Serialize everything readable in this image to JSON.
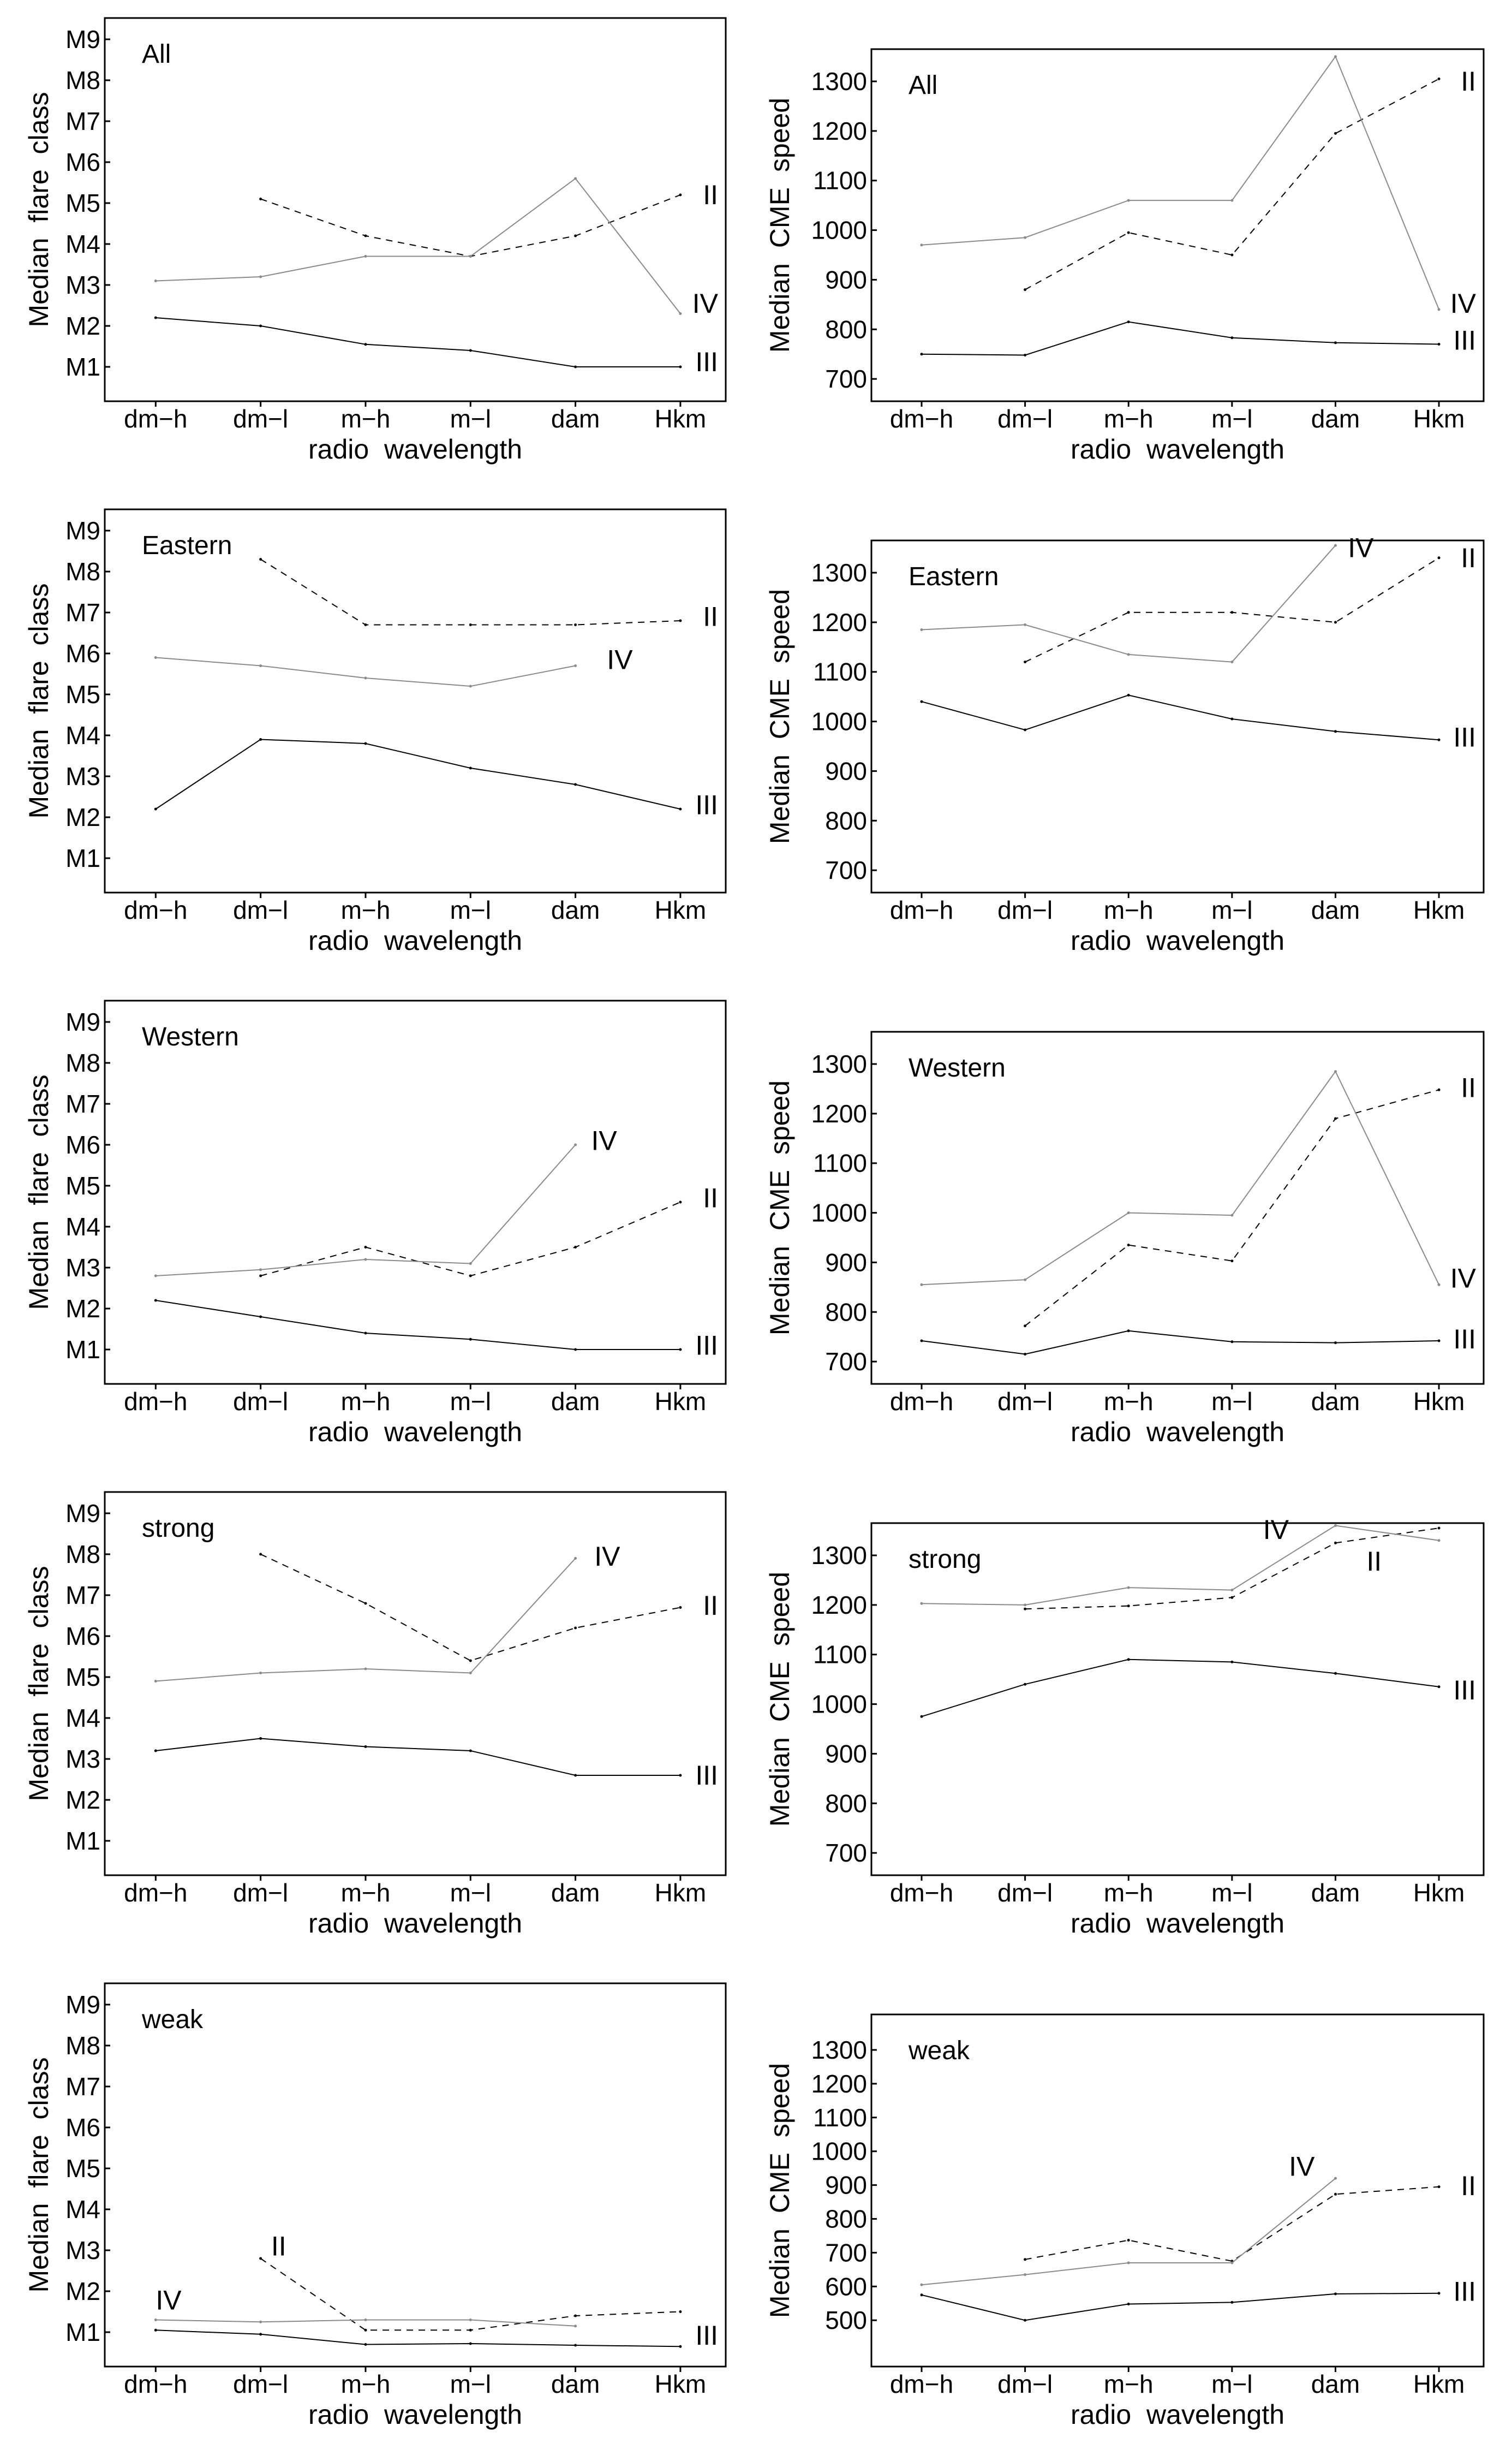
{
  "figure": {
    "rows": [
      "All",
      "Eastern",
      "Western",
      "strong",
      "weak"
    ],
    "columns": [
      "Median flare class",
      "Median CME speed"
    ],
    "accent_gray": "#8a8a8a",
    "line_black": "#000000"
  },
  "chart_data": [
    {
      "type": "line",
      "title": "All",
      "xlabel": "radio wavelength",
      "ylabel": "Median flare class",
      "col": "flare",
      "grid": false,
      "legend_position": "inline-right",
      "categories": [
        "dm−h",
        "dm−l",
        "m−h",
        "m−l",
        "dam",
        "Hkm"
      ],
      "ytick_values": [
        1,
        2,
        3,
        4,
        5,
        6,
        7,
        8,
        9
      ],
      "ytick_labels": [
        "M1",
        "M2",
        "M3",
        "M4",
        "M5",
        "M6",
        "M7",
        "M8",
        "M9"
      ],
      "ylim": [
        0.16,
        9.52
      ],
      "series": [
        {
          "name": "II",
          "line": "dashed",
          "color": "#000000",
          "values": [
            null,
            5.1,
            4.2,
            3.7,
            4.2,
            5.2
          ],
          "label": {
            "edge": "right",
            "y": 5.2
          }
        },
        {
          "name": "IV",
          "line": "solid",
          "color": "#8a8a8a",
          "values": [
            3.1,
            3.2,
            3.7,
            3.7,
            5.6,
            2.3
          ],
          "label": {
            "edge": "right",
            "y": 2.55
          }
        },
        {
          "name": "III",
          "line": "solid",
          "color": "#000000",
          "values": [
            2.2,
            2.0,
            1.55,
            1.4,
            1.0,
            1.0
          ],
          "label": {
            "edge": "right",
            "y": 1.12
          }
        }
      ]
    },
    {
      "type": "line",
      "title": "All",
      "xlabel": "radio wavelength",
      "ylabel": "Median CME speed",
      "col": "cme",
      "grid": false,
      "legend_position": "inline-right",
      "categories": [
        "dm−h",
        "dm−l",
        "m−h",
        "m−l",
        "dam",
        "Hkm"
      ],
      "ytick_values": [
        700,
        800,
        900,
        1000,
        1100,
        1200,
        1300
      ],
      "ytick_labels": [
        "700",
        "800",
        "900",
        "1000",
        "1100",
        "1200",
        "1300"
      ],
      "ylim": [
        655,
        1365
      ],
      "series": [
        {
          "name": "II",
          "line": "dashed",
          "color": "#000000",
          "values": [
            null,
            880,
            995,
            950,
            1195,
            1305
          ],
          "label": {
            "edge": "right",
            "y": 1300
          }
        },
        {
          "name": "IV",
          "line": "solid",
          "color": "#8a8a8a",
          "values": [
            970,
            985,
            1060,
            1060,
            1350,
            840
          ],
          "label": {
            "edge": "right",
            "y": 852
          }
        },
        {
          "name": "III",
          "line": "solid",
          "color": "#000000",
          "values": [
            750,
            748,
            815,
            783,
            773,
            770
          ],
          "label": {
            "edge": "right",
            "y": 778
          }
        }
      ]
    },
    {
      "type": "line",
      "title": "Eastern",
      "xlabel": "radio wavelength",
      "ylabel": "Median flare class",
      "col": "flare",
      "grid": false,
      "legend_position": "inline-right",
      "categories": [
        "dm−h",
        "dm−l",
        "m−h",
        "m−l",
        "dam",
        "Hkm"
      ],
      "ytick_values": [
        1,
        2,
        3,
        4,
        5,
        6,
        7,
        8,
        9
      ],
      "ytick_labels": [
        "M1",
        "M2",
        "M3",
        "M4",
        "M5",
        "M6",
        "M7",
        "M8",
        "M9"
      ],
      "ylim": [
        0.16,
        9.52
      ],
      "series": [
        {
          "name": "II",
          "line": "dashed",
          "color": "#000000",
          "values": [
            null,
            8.3,
            6.7,
            6.7,
            6.7,
            6.8
          ],
          "label": {
            "edge": "right",
            "y": 6.9
          }
        },
        {
          "name": "IV",
          "line": "solid",
          "color": "#8a8a8a",
          "values": [
            5.9,
            5.7,
            5.4,
            5.2,
            5.7,
            null
          ],
          "label": {
            "x": 4.3,
            "y": 5.85
          }
        },
        {
          "name": "III",
          "line": "solid",
          "color": "#000000",
          "values": [
            2.2,
            3.9,
            3.8,
            3.2,
            2.8,
            2.2
          ],
          "label": {
            "edge": "right",
            "y": 2.3
          }
        }
      ]
    },
    {
      "type": "line",
      "title": "Eastern",
      "xlabel": "radio wavelength",
      "ylabel": "Median CME speed",
      "col": "cme",
      "grid": false,
      "legend_position": "inline-right",
      "categories": [
        "dm−h",
        "dm−l",
        "m−h",
        "m−l",
        "dam",
        "Hkm"
      ],
      "ytick_values": [
        700,
        800,
        900,
        1000,
        1100,
        1200,
        1300
      ],
      "ytick_labels": [
        "700",
        "800",
        "900",
        "1000",
        "1100",
        "1200",
        "1300"
      ],
      "ylim": [
        655,
        1365
      ],
      "series": [
        {
          "name": "II",
          "line": "dashed",
          "color": "#000000",
          "values": [
            null,
            1120,
            1220,
            1220,
            1200,
            1330
          ],
          "label": {
            "edge": "right",
            "y": 1330
          }
        },
        {
          "name": "IV",
          "line": "solid",
          "color": "#8a8a8a",
          "values": [
            1185,
            1195,
            1135,
            1120,
            1355,
            null
          ],
          "label": {
            "x": 4.12,
            "y": 1350
          }
        },
        {
          "name": "III",
          "line": "solid",
          "color": "#000000",
          "values": [
            1040,
            983,
            1053,
            1005,
            980,
            963
          ],
          "label": {
            "edge": "right",
            "y": 968
          }
        }
      ]
    },
    {
      "type": "line",
      "title": "Western",
      "xlabel": "radio wavelength",
      "ylabel": "Median flare class",
      "col": "flare",
      "grid": false,
      "legend_position": "inline-right",
      "categories": [
        "dm−h",
        "dm−l",
        "m−h",
        "m−l",
        "dam",
        "Hkm"
      ],
      "ytick_values": [
        1,
        2,
        3,
        4,
        5,
        6,
        7,
        8,
        9
      ],
      "ytick_labels": [
        "M1",
        "M2",
        "M3",
        "M4",
        "M5",
        "M6",
        "M7",
        "M8",
        "M9"
      ],
      "ylim": [
        0.16,
        9.52
      ],
      "series": [
        {
          "name": "II",
          "line": "dashed",
          "color": "#000000",
          "values": [
            null,
            2.8,
            3.5,
            2.8,
            3.5,
            4.6
          ],
          "label": {
            "edge": "right",
            "y": 4.7
          }
        },
        {
          "name": "IV",
          "line": "solid",
          "color": "#8a8a8a",
          "values": [
            2.8,
            2.95,
            3.2,
            3.1,
            6.0,
            null
          ],
          "label": {
            "x": 4.15,
            "y": 6.1
          }
        },
        {
          "name": "III",
          "line": "solid",
          "color": "#000000",
          "values": [
            2.2,
            1.8,
            1.4,
            1.25,
            1.0,
            1.0
          ],
          "label": {
            "edge": "right",
            "y": 1.1
          }
        }
      ]
    },
    {
      "type": "line",
      "title": "Western",
      "xlabel": "radio wavelength",
      "ylabel": "Median CME speed",
      "col": "cme",
      "grid": false,
      "legend_position": "inline-right",
      "categories": [
        "dm−h",
        "dm−l",
        "m−h",
        "m−l",
        "dam",
        "Hkm"
      ],
      "ytick_values": [
        700,
        800,
        900,
        1000,
        1100,
        1200,
        1300
      ],
      "ytick_labels": [
        "700",
        "800",
        "900",
        "1000",
        "1100",
        "1200",
        "1300"
      ],
      "ylim": [
        655,
        1365
      ],
      "series": [
        {
          "name": "II",
          "line": "dashed",
          "color": "#000000",
          "values": [
            null,
            772,
            935,
            903,
            1190,
            1248
          ],
          "label": {
            "edge": "right",
            "y": 1252
          }
        },
        {
          "name": "IV",
          "line": "solid",
          "color": "#8a8a8a",
          "values": [
            855,
            865,
            1000,
            995,
            1285,
            855
          ],
          "label": {
            "edge": "right",
            "y": 868
          }
        },
        {
          "name": "III",
          "line": "solid",
          "color": "#000000",
          "values": [
            742,
            715,
            762,
            740,
            738,
            742
          ],
          "label": {
            "edge": "right",
            "y": 745
          }
        }
      ]
    },
    {
      "type": "line",
      "title": "strong",
      "xlabel": "radio wavelength",
      "ylabel": "Median flare class",
      "col": "flare",
      "grid": false,
      "legend_position": "inline-right",
      "categories": [
        "dm−h",
        "dm−l",
        "m−h",
        "m−l",
        "dam",
        "Hkm"
      ],
      "ytick_values": [
        1,
        2,
        3,
        4,
        5,
        6,
        7,
        8,
        9
      ],
      "ytick_labels": [
        "M1",
        "M2",
        "M3",
        "M4",
        "M5",
        "M6",
        "M7",
        "M8",
        "M9"
      ],
      "ylim": [
        0.16,
        9.52
      ],
      "series": [
        {
          "name": "II",
          "line": "dashed",
          "color": "#000000",
          "values": [
            null,
            8.0,
            6.8,
            5.4,
            6.2,
            6.7
          ],
          "label": {
            "edge": "right",
            "y": 6.75
          }
        },
        {
          "name": "IV",
          "line": "solid",
          "color": "#8a8a8a",
          "values": [
            4.9,
            5.1,
            5.2,
            5.1,
            7.9,
            null
          ],
          "label": {
            "x": 4.18,
            "y": 7.95
          }
        },
        {
          "name": "III",
          "line": "solid",
          "color": "#000000",
          "values": [
            3.2,
            3.5,
            3.3,
            3.2,
            2.6,
            2.6
          ],
          "label": {
            "edge": "right",
            "y": 2.6
          }
        }
      ]
    },
    {
      "type": "line",
      "title": "strong",
      "xlabel": "radio wavelength",
      "ylabel": "Median CME speed",
      "col": "cme",
      "grid": false,
      "legend_position": "inline-right",
      "categories": [
        "dm−h",
        "dm−l",
        "m−h",
        "m−l",
        "dam",
        "Hkm"
      ],
      "ytick_values": [
        700,
        800,
        900,
        1000,
        1100,
        1200,
        1300
      ],
      "ytick_labels": [
        "700",
        "800",
        "900",
        "1000",
        "1100",
        "1200",
        "1300"
      ],
      "ylim": [
        655,
        1365
      ],
      "series": [
        {
          "name": "II",
          "line": "dashed",
          "color": "#000000",
          "values": [
            null,
            1192,
            1198,
            1215,
            1325,
            1355
          ],
          "label": {
            "x": 4.3,
            "y": 1288
          }
        },
        {
          "name": "IV",
          "line": "solid",
          "color": "#8a8a8a",
          "values": [
            1203,
            1200,
            1235,
            1230,
            1360,
            1330
          ],
          "label": {
            "x": 3.3,
            "y": 1352
          }
        },
        {
          "name": "III",
          "line": "solid",
          "color": "#000000",
          "values": [
            975,
            1040,
            1090,
            1085,
            1062,
            1035
          ],
          "label": {
            "edge": "right",
            "y": 1028
          }
        }
      ]
    },
    {
      "type": "line",
      "title": "weak",
      "xlabel": "radio wavelength",
      "ylabel": "Median flare class",
      "col": "flare",
      "grid": false,
      "legend_position": "inline-right",
      "categories": [
        "dm−h",
        "dm−l",
        "m−h",
        "m−l",
        "dam",
        "Hkm"
      ],
      "ytick_values": [
        1,
        2,
        3,
        4,
        5,
        6,
        7,
        8,
        9
      ],
      "ytick_labels": [
        "M1",
        "M2",
        "M3",
        "M4",
        "M5",
        "M6",
        "M7",
        "M8",
        "M9"
      ],
      "ylim": [
        0.16,
        9.52
      ],
      "series": [
        {
          "name": "II",
          "line": "dashed",
          "color": "#000000",
          "values": [
            null,
            2.8,
            1.05,
            1.05,
            1.4,
            1.5
          ],
          "label": {
            "x": 1.1,
            "y": 3.1
          }
        },
        {
          "name": "IV",
          "line": "solid",
          "color": "#8a8a8a",
          "values": [
            1.3,
            1.25,
            1.3,
            1.3,
            1.15,
            null
          ],
          "label": {
            "x": 0.0,
            "y": 1.78
          }
        },
        {
          "name": "III",
          "line": "solid",
          "color": "#000000",
          "values": [
            1.05,
            0.95,
            0.7,
            0.72,
            0.68,
            0.65
          ],
          "label": {
            "edge": "right",
            "y": 0.92
          }
        }
      ]
    },
    {
      "type": "line",
      "title": "weak",
      "xlabel": "radio wavelength",
      "ylabel": "Median CME speed",
      "col": "cme",
      "grid": false,
      "legend_position": "inline-right",
      "categories": [
        "dm−h",
        "dm−l",
        "m−h",
        "m−l",
        "dam",
        "Hkm"
      ],
      "ytick_values": [
        500,
        600,
        700,
        800,
        900,
        1000,
        1100,
        1200,
        1300
      ],
      "ytick_labels": [
        "500",
        "600",
        "700",
        "800",
        "900",
        "1000",
        "1100",
        "1200",
        "1300"
      ],
      "ylim": [
        363,
        1405
      ],
      "series": [
        {
          "name": "II",
          "line": "dashed",
          "color": "#000000",
          "values": [
            null,
            680,
            737,
            675,
            873,
            895
          ],
          "label": {
            "edge": "right",
            "y": 898
          }
        },
        {
          "name": "IV",
          "line": "solid",
          "color": "#8a8a8a",
          "values": [
            605,
            635,
            670,
            670,
            920,
            null
          ],
          "label": {
            "x": 3.55,
            "y": 955
          }
        },
        {
          "name": "III",
          "line": "solid",
          "color": "#000000",
          "values": [
            575,
            500,
            548,
            553,
            578,
            580
          ],
          "label": {
            "edge": "right",
            "y": 585
          }
        }
      ]
    }
  ]
}
